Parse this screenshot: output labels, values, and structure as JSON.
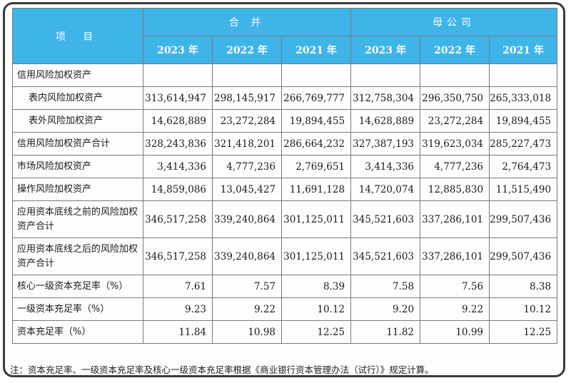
{
  "header": {
    "item_label": "项 目",
    "group_consolidated": "合 并",
    "group_parent": "母公司",
    "years": [
      "2023 年",
      "2022 年",
      "2021 年",
      "2023 年",
      "2022 年",
      "2021 年"
    ]
  },
  "rows": [
    {
      "label": "信用风险加权资产",
      "indent": false,
      "values": [
        "",
        "",
        "",
        "",
        "",
        ""
      ]
    },
    {
      "label": "表内风险加权资产",
      "indent": true,
      "values": [
        "313,614,947",
        "298,145,917",
        "266,769,777",
        "312,758,304",
        "296,350,750",
        "265,333,018"
      ]
    },
    {
      "label": "表外风险加权资产",
      "indent": true,
      "values": [
        "14,628,889",
        "23,272,284",
        "19,894,455",
        "14,628,889",
        "23,272,284",
        "19,894,455"
      ]
    },
    {
      "label": "信用风险加权资产合计",
      "indent": false,
      "values": [
        "328,243,836",
        "321,418,201",
        "286,664,232",
        "327,387,193",
        "319,623,034",
        "285,227,473"
      ]
    },
    {
      "label": "市场风险加权资产",
      "indent": false,
      "values": [
        "3,414,336",
        "4,777,236",
        "2,769,651",
        "3,414,336",
        "4,777,236",
        "2,764,473"
      ]
    },
    {
      "label": "操作风险加权资产",
      "indent": false,
      "values": [
        "14,859,086",
        "13,045,427",
        "11,691,128",
        "14,720,074",
        "12,885,830",
        "11,515,490"
      ]
    },
    {
      "label": "应用资本底线之前的风险加权资产合计",
      "indent": false,
      "tall": true,
      "values": [
        "346,517,258",
        "339,240,864",
        "301,125,011",
        "345,521,603",
        "337,286,101",
        "299,507,436"
      ]
    },
    {
      "label": "应用资本底线之后的风险加权资产合计",
      "indent": false,
      "tall": true,
      "values": [
        "346,517,258",
        "339,240,864",
        "301,125,011",
        "345,521,603",
        "337,286,101",
        "299,507,436"
      ]
    },
    {
      "label": "核心一级资本充足率（%）",
      "indent": false,
      "values": [
        "7.61",
        "7.57",
        "8.39",
        "7.58",
        "7.56",
        "8.38"
      ]
    },
    {
      "label": "一级资本充足率（%）",
      "indent": false,
      "values": [
        "9.23",
        "9.22",
        "10.12",
        "9.20",
        "9.22",
        "10.12"
      ]
    },
    {
      "label": "资本充足率（%）",
      "indent": false,
      "values": [
        "11.84",
        "10.98",
        "12.25",
        "11.82",
        "10.99",
        "12.25"
      ]
    }
  ],
  "note": "注：资本充足率、一级资本充足率及核心一级资本充足率根据《商业银行资本管理办法（试行）》规定计算。"
}
